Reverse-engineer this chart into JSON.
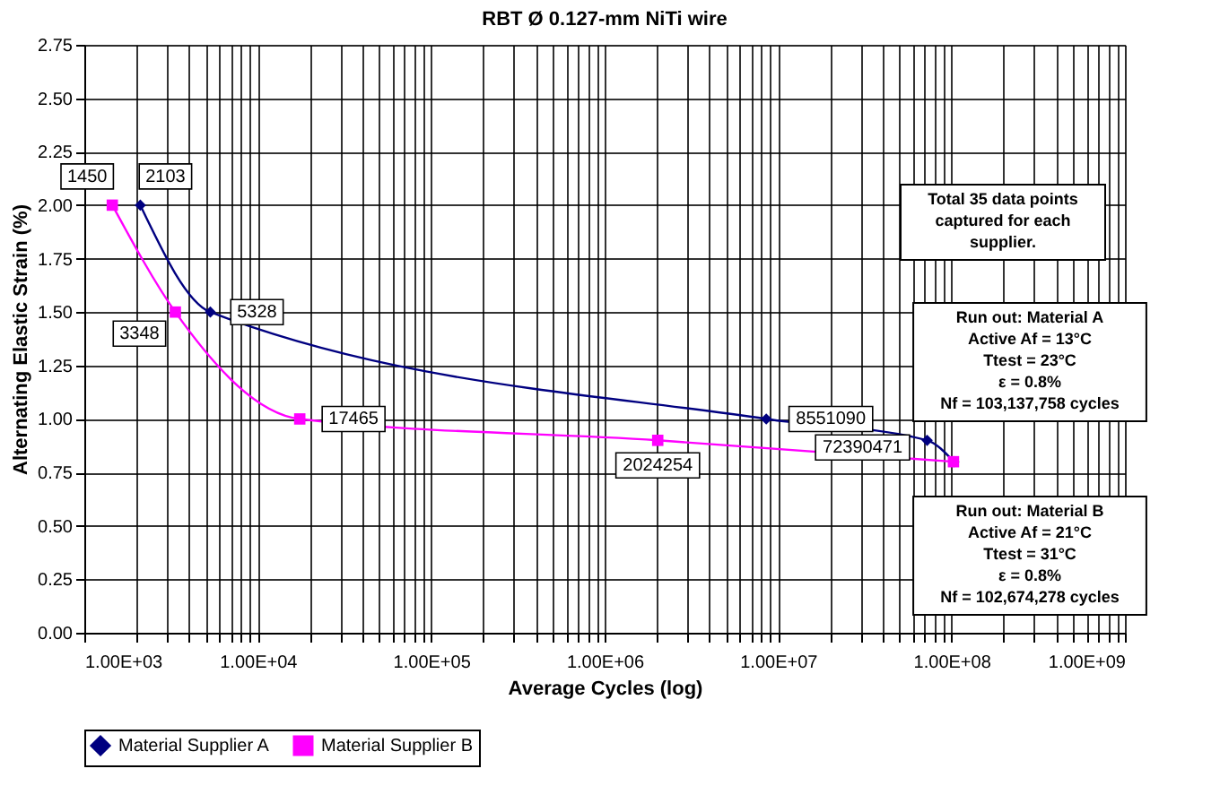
{
  "chart_data": {
    "type": "line",
    "title": "RBT Ø 0.127-mm NiTi wire",
    "xlabel": "Average Cycles (log)",
    "ylabel": "Alternating Elastic Strain (%)",
    "log": "x",
    "grid": true,
    "legend": "bottom",
    "line_style": "solid",
    "xlim": [
      1000,
      1000000000
    ],
    "ylim": [
      0,
      2.75
    ],
    "xticks": [
      {
        "value": 1000,
        "label": "1.00E+03"
      },
      {
        "value": 2000,
        "label": null
      },
      {
        "value": 3000,
        "label": null
      },
      {
        "value": 4000,
        "label": null
      },
      {
        "value": 5000,
        "label": null
      },
      {
        "value": 6000,
        "label": null
      },
      {
        "value": 7000,
        "label": null
      },
      {
        "value": 8000,
        "label": null
      },
      {
        "value": 9000,
        "label": null
      },
      {
        "value": 10000,
        "label": "1.00E+04"
      },
      {
        "value": 20000,
        "label": null
      },
      {
        "value": 30000,
        "label": null
      },
      {
        "value": 40000,
        "label": null
      },
      {
        "value": 50000,
        "label": null
      },
      {
        "value": 60000,
        "label": null
      },
      {
        "value": 70000,
        "label": null
      },
      {
        "value": 80000,
        "label": null
      },
      {
        "value": 90000,
        "label": null
      },
      {
        "value": 100000,
        "label": "1.00E+05"
      },
      {
        "value": 200000,
        "label": null
      },
      {
        "value": 300000,
        "label": null
      },
      {
        "value": 400000,
        "label": null
      },
      {
        "value": 500000,
        "label": null
      },
      {
        "value": 600000,
        "label": null
      },
      {
        "value": 700000,
        "label": null
      },
      {
        "value": 800000,
        "label": null
      },
      {
        "value": 900000,
        "label": null
      },
      {
        "value": 1000000,
        "label": "1.00E+06"
      },
      {
        "value": 2000000,
        "label": null
      },
      {
        "value": 3000000,
        "label": null
      },
      {
        "value": 4000000,
        "label": null
      },
      {
        "value": 5000000,
        "label": null
      },
      {
        "value": 6000000,
        "label": null
      },
      {
        "value": 7000000,
        "label": null
      },
      {
        "value": 8000000,
        "label": null
      },
      {
        "value": 9000000,
        "label": null
      },
      {
        "value": 10000000,
        "label": "1.00E+07"
      },
      {
        "value": 20000000,
        "label": null
      },
      {
        "value": 30000000,
        "label": null
      },
      {
        "value": 40000000,
        "label": null
      },
      {
        "value": 50000000,
        "label": null
      },
      {
        "value": 60000000,
        "label": null
      },
      {
        "value": 70000000,
        "label": null
      },
      {
        "value": 80000000,
        "label": null
      },
      {
        "value": 90000000,
        "label": null
      },
      {
        "value": 100000000,
        "label": "1.00E+08"
      },
      {
        "value": 200000000,
        "label": null
      },
      {
        "value": 300000000,
        "label": null
      },
      {
        "value": 400000000,
        "label": null
      },
      {
        "value": 500000000,
        "label": null
      },
      {
        "value": 600000000,
        "label": null
      },
      {
        "value": 700000000,
        "label": null
      },
      {
        "value": 800000000,
        "label": null
      },
      {
        "value": 900000000,
        "label": null
      },
      {
        "value": 1000000000,
        "label": "1.00E+09"
      }
    ],
    "yticks": [
      {
        "value": 0,
        "label": "0.00"
      },
      {
        "value": 0.25,
        "label": "0.25"
      },
      {
        "value": 0.5,
        "label": "0.50"
      },
      {
        "value": 0.75,
        "label": "0.75"
      },
      {
        "value": 1,
        "label": "1.00"
      },
      {
        "value": 1.25,
        "label": "1.25"
      },
      {
        "value": 1.5,
        "label": "1.50"
      },
      {
        "value": 1.75,
        "label": "1.75"
      },
      {
        "value": 2,
        "label": "2.00"
      },
      {
        "value": 2.25,
        "label": "2.25"
      },
      {
        "value": 2.5,
        "label": "2.50"
      },
      {
        "value": 2.75,
        "label": "2.75"
      }
    ],
    "series": [
      {
        "name": "Material Supplier A",
        "color": "#000080",
        "marker": "diamond",
        "x": [
          2103,
          5328,
          8551090,
          72390471,
          103137758
        ],
        "values": [
          2.0,
          1.5,
          1.0,
          0.9,
          0.8
        ]
      },
      {
        "name": "Material Supplier B",
        "color": "#ff00ff",
        "marker": "square",
        "x": [
          1450,
          3348,
          17465,
          2024254,
          102674278
        ],
        "values": [
          2.0,
          1.5,
          1.0,
          0.9,
          0.8
        ]
      }
    ],
    "annotations": [
      {
        "text": "1450",
        "x": 1450,
        "y": 2.0
      },
      {
        "text": "2103",
        "x": 2103,
        "y": 2.0
      },
      {
        "text": "3348",
        "x": 3348,
        "y": 1.5
      },
      {
        "text": "5328",
        "x": 5328,
        "y": 1.5
      },
      {
        "text": "17465",
        "x": 17465,
        "y": 1.0
      },
      {
        "text": "8551090",
        "x": 8551090,
        "y": 1.0
      },
      {
        "text": "2024254",
        "x": 2024254,
        "y": 0.9
      },
      {
        "text": "72390471",
        "x": 72390471,
        "y": 0.9
      },
      "Total 35 data points\ncaptured for each\nsupplier.",
      "Run out: Material A\nActive Af = 13°C\nTtest = 23°C\nε = 0.8%\nNf = 103,137,758 cycles",
      "Run out: Material B\nActive Af = 21°C\nTtest = 31°C\nε = 0.8%\nNf = 102,674,278 cycles"
    ]
  }
}
